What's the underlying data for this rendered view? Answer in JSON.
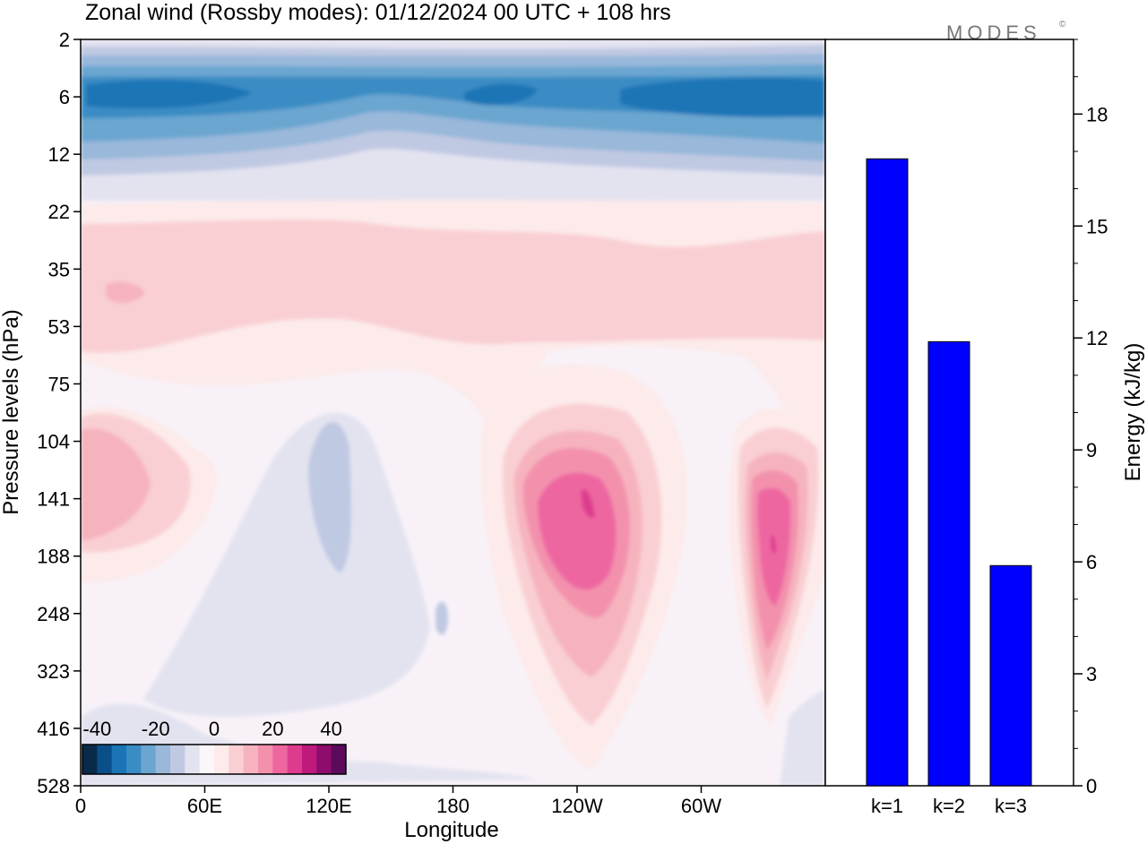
{
  "title": "Zonal wind (Rossby modes):  01/12/2024  00 UTC  + 108 hrs",
  "brand": "MODES",
  "brand_mark": "©",
  "chart_data": [
    {
      "type": "heatmap",
      "title": "Zonal wind (Rossby modes):  01/12/2024  00 UTC  + 108 hrs",
      "xlabel": "Longitude",
      "ylabel": "Pressure levels (hPa)",
      "x_ticks": [
        "0",
        "60E",
        "120E",
        "180",
        "120W",
        "60W"
      ],
      "y_ticks": [
        "2",
        "6",
        "12",
        "22",
        "35",
        "53",
        "75",
        "104",
        "141",
        "188",
        "248",
        "323",
        "416",
        "528"
      ],
      "colorbar": {
        "ticks": [
          "-40",
          "-20",
          "0",
          "20",
          "40"
        ],
        "levels": [
          -45,
          -40,
          -35,
          -30,
          -25,
          -20,
          -15,
          -10,
          -5,
          0,
          5,
          10,
          15,
          20,
          25,
          30,
          35,
          40,
          45
        ],
        "colors": [
          "#0a2a4a",
          "#0b4f8a",
          "#1a74b5",
          "#3a8cc4",
          "#6aa6d0",
          "#99b8da",
          "#c0c9e2",
          "#e3e3f0",
          "#faf6fa",
          "#fdeaea",
          "#f9cfd3",
          "#f6b3be",
          "#f391ad",
          "#ee66a0",
          "#dd3c8e",
          "#bd1a7c",
          "#8e0c6b",
          "#5c0a5c"
        ]
      },
      "features": [
        {
          "label": "easterly jet (~-25 m/s)",
          "lon_center": "0-60E and 150W-60W",
          "level_hPa": 6
        },
        {
          "label": "westerly max (~35 m/s)",
          "lon": "120W",
          "level_hPa": 141
        },
        {
          "label": "westerly max (~35 m/s)",
          "lon": "30W",
          "level_hPa": 160
        },
        {
          "label": "westerly (~15 m/s)",
          "lon": "15E",
          "level_hPa": 141
        },
        {
          "label": "weak easterly (~-10 m/s)",
          "lon": "120E",
          "level_hPa": 141
        }
      ]
    },
    {
      "type": "bar",
      "categories": [
        "k=1",
        "k=2",
        "k=3"
      ],
      "values": [
        16.8,
        11.9,
        5.9
      ],
      "ylabel": "Energy (kJ/kg)",
      "ylim": [
        0,
        20
      ],
      "y_ticks": [
        0,
        3,
        6,
        9,
        12,
        15,
        18
      ],
      "bar_color": "#0000ff"
    }
  ]
}
